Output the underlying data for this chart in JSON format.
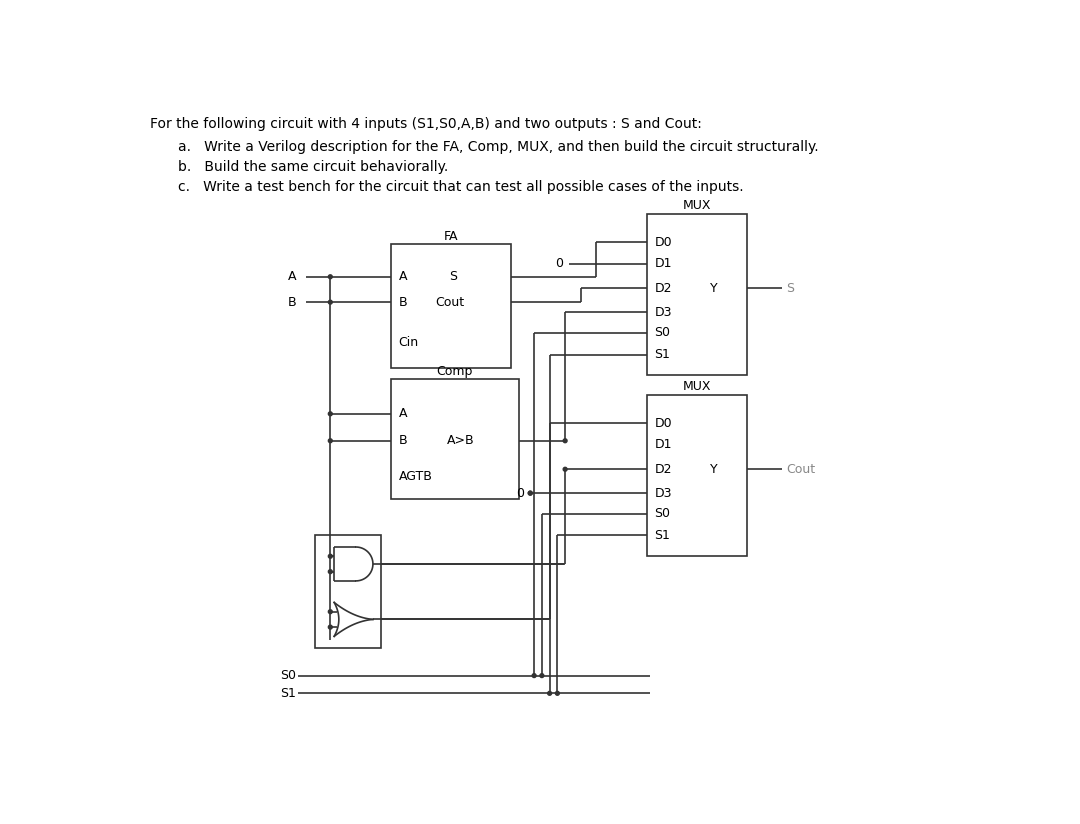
{
  "title_line1": "For the following circuit with 4 inputs (S1,S0,A,B) and two outputs : S and Cout:",
  "item_a": "a.   Write a Verilog description for the FA, Comp, MUX, and then build the circuit structurally.",
  "item_b": "b.   Build the same circuit behaviorally.",
  "item_c": "c.   Write a test bench for the circuit that can test all possible cases of the inputs.",
  "bg_color": "#ffffff",
  "line_color": "#333333",
  "text_color": "#000000",
  "gray_color": "#888888",
  "lw": 1.2,
  "dot_r": 0.025,
  "font_size_header": 10.0,
  "font_size_circuit": 9.0
}
